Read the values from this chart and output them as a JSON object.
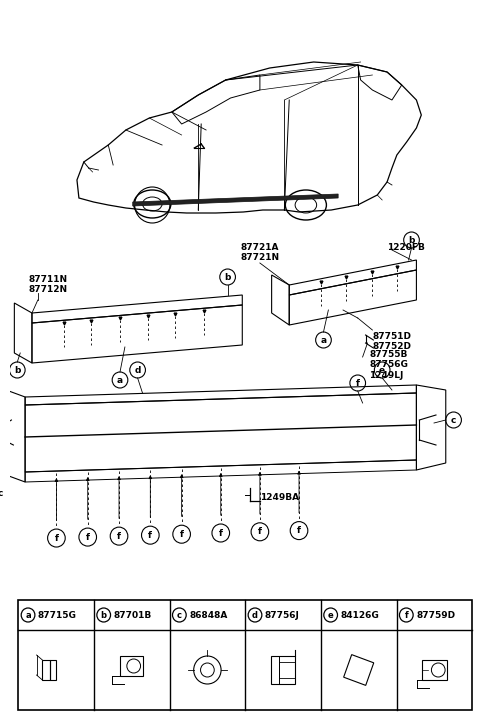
{
  "bg_color": "#ffffff",
  "fig_width": 4.8,
  "fig_height": 7.16,
  "dpi": 100,
  "part_labels": [
    {
      "letter": "a",
      "code": "87715G"
    },
    {
      "letter": "b",
      "code": "87701B"
    },
    {
      "letter": "c",
      "code": "86848A"
    },
    {
      "letter": "d",
      "code": "87756J"
    },
    {
      "letter": "e",
      "code": "84126G"
    },
    {
      "letter": "f",
      "code": "87759D"
    }
  ],
  "label_87721A": "87721A",
  "label_87721N": "87721N",
  "label_1220FB": "1220FB",
  "label_87711N": "87711N",
  "label_87712N": "87712N",
  "label_87751D": "87751D",
  "label_87752D": "87752D",
  "label_87755B": "87755B",
  "label_87756G": "87756G",
  "label_1249LJ": "1249LJ",
  "label_1249BA": "1249BA"
}
